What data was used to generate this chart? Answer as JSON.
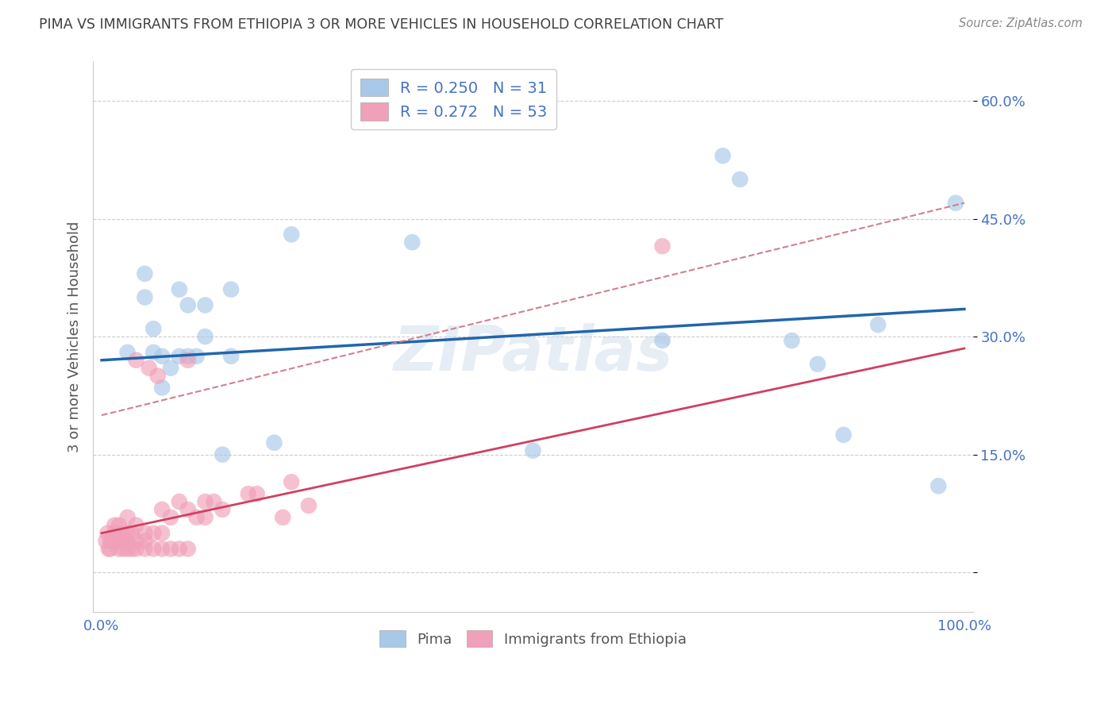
{
  "title": "PIMA VS IMMIGRANTS FROM ETHIOPIA 3 OR MORE VEHICLES IN HOUSEHOLD CORRELATION CHART",
  "source": "Source: ZipAtlas.com",
  "ylabel": "3 or more Vehicles in Household",
  "xlabel": "",
  "xlim": [
    -0.01,
    1.01
  ],
  "ylim": [
    -0.05,
    0.65
  ],
  "yticks": [
    0.0,
    0.15,
    0.3,
    0.45,
    0.6
  ],
  "ytick_labels": [
    "",
    "15.0%",
    "30.0%",
    "45.0%",
    "60.0%"
  ],
  "xticks": [
    0.0,
    0.1,
    0.2,
    0.3,
    0.4,
    0.5,
    0.6,
    0.7,
    0.8,
    0.9,
    1.0
  ],
  "xtick_labels": [
    "0.0%",
    "",
    "",
    "",
    "",
    "",
    "",
    "",
    "",
    "",
    "100.0%"
  ],
  "legend_label1": "Pima",
  "legend_label2": "Immigrants from Ethiopia",
  "R1": 0.25,
  "N1": 31,
  "R2": 0.272,
  "N2": 53,
  "color_blue": "#a8c8e8",
  "color_pink": "#f0a0b8",
  "color_blue_line": "#2166ac",
  "color_pink_line": "#d04060",
  "color_dashed": "#d08090",
  "background_color": "#ffffff",
  "grid_color": "#cccccc",
  "axis_label_color": "#4472c4",
  "title_color": "#404040",
  "watermark": "ZIPatlas",
  "blue_line_x0": 0.0,
  "blue_line_y0": 0.27,
  "blue_line_x1": 1.0,
  "blue_line_y1": 0.335,
  "pink_line_x0": 0.0,
  "pink_line_y0": 0.05,
  "pink_line_x1": 1.0,
  "pink_line_y1": 0.285,
  "dashed_line_x0": 0.0,
  "dashed_line_y0": 0.2,
  "dashed_line_x1": 1.0,
  "dashed_line_y1": 0.47,
  "blue_scatter_x": [
    0.03,
    0.05,
    0.05,
    0.06,
    0.06,
    0.07,
    0.07,
    0.08,
    0.09,
    0.09,
    0.1,
    0.1,
    0.11,
    0.12,
    0.12,
    0.14,
    0.15,
    0.15,
    0.2,
    0.22,
    0.36,
    0.5,
    0.65,
    0.72,
    0.74,
    0.8,
    0.83,
    0.86,
    0.9,
    0.97,
    0.99
  ],
  "blue_scatter_y": [
    0.28,
    0.35,
    0.38,
    0.28,
    0.31,
    0.235,
    0.275,
    0.26,
    0.275,
    0.36,
    0.275,
    0.34,
    0.275,
    0.3,
    0.34,
    0.15,
    0.36,
    0.275,
    0.165,
    0.43,
    0.42,
    0.155,
    0.295,
    0.53,
    0.5,
    0.295,
    0.265,
    0.175,
    0.315,
    0.11,
    0.47
  ],
  "pink_scatter_x": [
    0.005,
    0.007,
    0.008,
    0.01,
    0.01,
    0.012,
    0.015,
    0.015,
    0.015,
    0.02,
    0.02,
    0.02,
    0.025,
    0.025,
    0.025,
    0.03,
    0.03,
    0.03,
    0.03,
    0.035,
    0.035,
    0.04,
    0.04,
    0.04,
    0.04,
    0.05,
    0.05,
    0.05,
    0.055,
    0.06,
    0.06,
    0.065,
    0.07,
    0.07,
    0.07,
    0.08,
    0.08,
    0.09,
    0.09,
    0.1,
    0.1,
    0.1,
    0.11,
    0.12,
    0.12,
    0.13,
    0.14,
    0.17,
    0.18,
    0.21,
    0.22,
    0.24,
    0.65
  ],
  "pink_scatter_y": [
    0.04,
    0.05,
    0.03,
    0.03,
    0.04,
    0.04,
    0.04,
    0.05,
    0.06,
    0.03,
    0.04,
    0.06,
    0.03,
    0.04,
    0.05,
    0.03,
    0.04,
    0.05,
    0.07,
    0.03,
    0.05,
    0.03,
    0.04,
    0.06,
    0.27,
    0.03,
    0.04,
    0.05,
    0.26,
    0.03,
    0.05,
    0.25,
    0.03,
    0.05,
    0.08,
    0.03,
    0.07,
    0.03,
    0.09,
    0.03,
    0.08,
    0.27,
    0.07,
    0.07,
    0.09,
    0.09,
    0.08,
    0.1,
    0.1,
    0.07,
    0.115,
    0.085,
    0.415
  ]
}
